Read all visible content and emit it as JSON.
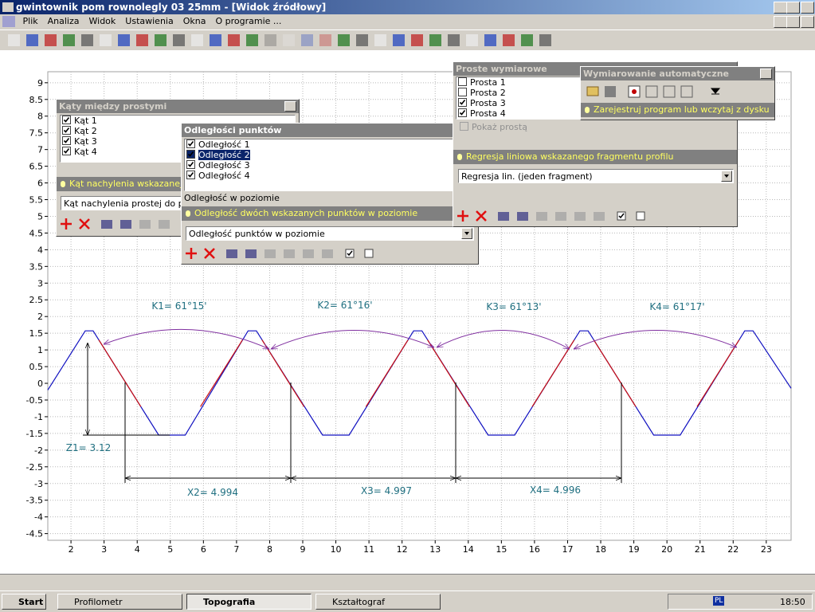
{
  "window": {
    "title": "gwintownik pom rownolegly 03 25mm - [Widok źródłowy]"
  },
  "menu": [
    "Plik",
    "Analiza",
    "Widok",
    "Ustawienia",
    "Okna",
    "O programie ..."
  ],
  "plot": {
    "xlim": [
      1.3,
      23.75
    ],
    "ylim": [
      -4.7,
      9.33
    ],
    "xticks": [
      2,
      3,
      4,
      5,
      6,
      7,
      8,
      9,
      10,
      11,
      12,
      13,
      14,
      15,
      16,
      17,
      18,
      19,
      20,
      21,
      22,
      23
    ],
    "yticks": [
      9,
      8.5,
      8,
      7.5,
      7,
      6.5,
      6,
      5.5,
      5,
      4.5,
      4,
      3.5,
      3,
      2.5,
      2,
      1.5,
      1,
      0.5,
      0,
      -0.5,
      -1,
      -1.5,
      -2,
      -2.5,
      -3,
      -3.5,
      -4,
      -4.5
    ],
    "grid": true,
    "profile": {
      "color": "#1010c0",
      "x": [
        1.3,
        2.43,
        2.67,
        4.65,
        5.45,
        7.35,
        7.6,
        9.6,
        10.4,
        12.35,
        12.6,
        14.6,
        15.4,
        17.37,
        17.62,
        19.6,
        20.4,
        22.35,
        22.6,
        23.75
      ],
      "y": [
        -0.2,
        1.57,
        1.57,
        -1.55,
        -1.55,
        1.57,
        1.57,
        -1.55,
        -1.55,
        1.57,
        1.57,
        -1.55,
        -1.55,
        1.57,
        1.57,
        -1.55,
        -1.55,
        1.57,
        1.57,
        -0.15
      ]
    },
    "fit_lines": {
      "color": "#cc1010",
      "segments": [
        [
          2.84,
          1.3,
          4.11,
          -0.7
        ],
        [
          7.18,
          1.3,
          5.91,
          -0.7
        ],
        [
          7.77,
          1.3,
          9.04,
          -0.7
        ],
        [
          12.18,
          1.3,
          10.91,
          -0.7
        ],
        [
          12.77,
          1.3,
          14.04,
          -0.7
        ],
        [
          17.2,
          1.3,
          15.93,
          -0.7
        ],
        [
          17.79,
          1.3,
          19.06,
          -0.7
        ],
        [
          22.18,
          1.3,
          20.91,
          -0.7
        ]
      ]
    },
    "annotations": [
      "K1= 61°15'",
      "K2= 61°16'",
      "K3= 61°13'",
      "K4= 61°17'",
      "Z1= 3.12",
      "X2= 4.994",
      "X3= 4.997",
      "X4= 4.996"
    ]
  },
  "panels": [
    {
      "title": "Kąty między prostymi",
      "items": [
        {
          "label": "Kąt 1",
          "checked": true
        },
        {
          "label": "Kąt 2",
          "checked": true
        },
        {
          "label": "Kąt 3",
          "checked": true
        },
        {
          "label": "Kąt 4",
          "checked": true
        }
      ],
      "hint": "Kąt nachylenia wskazanej pr",
      "combo": "Kąt nachylenia prostej do pozi"
    },
    {
      "title": "Odległości punktów",
      "items": [
        {
          "label": "Odległość 1",
          "checked": true
        },
        {
          "label": "Odległość 2",
          "checked": true,
          "selected": true
        },
        {
          "label": "Odległość 3",
          "checked": true
        },
        {
          "label": "Odległość 4",
          "checked": true
        }
      ],
      "caption": "Odległość w poziomie",
      "hint": "Odległość dwóch wskazanych punktów w poziomie",
      "combo": "Odległość punktów w poziomie"
    },
    {
      "title": "Proste wymiarowe",
      "items": [
        {
          "label": "Prosta 1",
          "checked": false
        },
        {
          "label": "Prosta 2",
          "checked": false
        },
        {
          "label": "Prosta 3",
          "checked": true
        },
        {
          "label": "Prosta 4",
          "checked": true
        }
      ],
      "option": "Pokaż prostą",
      "hint": "Regresja liniowa wskazanego fragmentu profilu",
      "combo": "Regresja lin. (jeden fragment)"
    },
    {
      "title": "Wymiarowanie automatyczne",
      "hint": "Zarejestruj program lub wczytaj z dysku"
    }
  ],
  "taskbar": {
    "start": "Start",
    "tasks": [
      "Profilometr",
      "Topografia",
      "Kształtograf"
    ],
    "active": 1,
    "lang": "PL",
    "clock": "18:50"
  }
}
